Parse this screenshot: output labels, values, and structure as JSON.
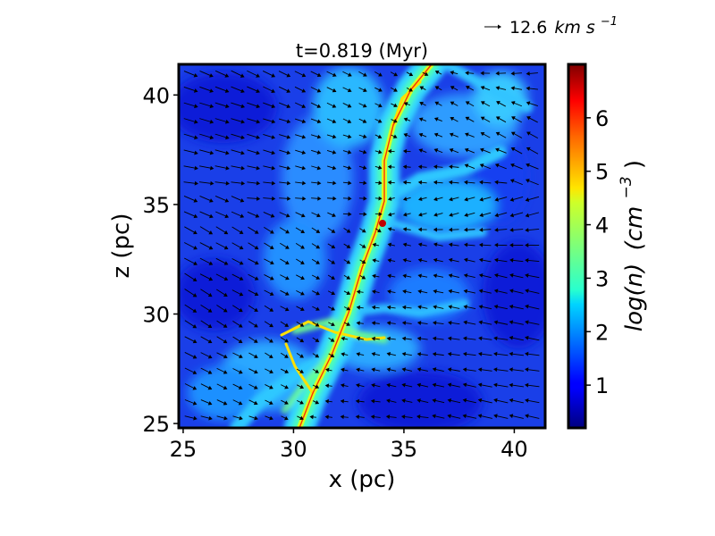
{
  "chart_data": {
    "type": "heatmap",
    "title": "t=0.819 (Myr)",
    "xlabel": "x (pc)",
    "ylabel": "z (pc)",
    "xlim": [
      24.8,
      41.4
    ],
    "ylim": [
      24.8,
      41.4
    ],
    "xticks": [
      25,
      30,
      35,
      40
    ],
    "yticks": [
      25,
      30,
      35,
      40
    ],
    "xtick_labels": [
      "25",
      "30",
      "35",
      "40"
    ],
    "ytick_labels": [
      "25",
      "30",
      "35",
      "40"
    ],
    "colorbar": {
      "label_base": "log(n)",
      "label_unit": "(cm",
      "label_exp": "−3",
      "label_close": ")",
      "range": [
        0.2,
        7.0
      ],
      "ticks": [
        1,
        2,
        3,
        4,
        5,
        6
      ],
      "tick_labels": [
        "1",
        "2",
        "3",
        "4",
        "5",
        "6"
      ],
      "colormap": "jet"
    },
    "quiver_key": {
      "value": "12.6",
      "unit": "km s",
      "unit_exp": "−1"
    },
    "filament_spine": [
      [
        30.8,
        24.9
      ],
      [
        31.4,
        27.0
      ],
      [
        32.3,
        29.2
      ],
      [
        32.9,
        31.2
      ],
      [
        33.6,
        33.0
      ],
      [
        34.1,
        34.2
      ],
      [
        34.0,
        36.0
      ],
      [
        34.4,
        37.8
      ],
      [
        35.3,
        39.8
      ],
      [
        36.2,
        41.4
      ]
    ],
    "colors": {
      "background_low": "#1a3fe8",
      "filament_core": "#ffd400",
      "filament_peak": "#ff3000",
      "frame": "#000000"
    }
  }
}
